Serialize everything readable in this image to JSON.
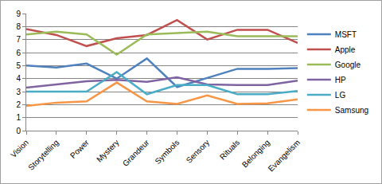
{
  "chart_data": {
    "type": "line",
    "categories": [
      "Vision",
      "Storytelling",
      "Power",
      "Mystery",
      "Grandeur",
      "Symbols",
      "Sensory",
      "Rituals",
      "Belonging",
      "Evangelism"
    ],
    "series": [
      {
        "name": "MSFT",
        "color": "#4f81bd",
        "values": [
          5.0,
          4.85,
          5.15,
          4.0,
          5.55,
          3.35,
          4.05,
          4.75,
          4.75,
          4.8
        ]
      },
      {
        "name": "Apple",
        "color": "#c0504d",
        "values": [
          7.8,
          7.35,
          6.5,
          7.1,
          7.35,
          8.5,
          7.0,
          7.75,
          7.75,
          6.75
        ]
      },
      {
        "name": "Google",
        "color": "#9bbb59",
        "values": [
          7.4,
          7.6,
          7.4,
          5.85,
          7.4,
          7.5,
          7.6,
          7.25,
          7.25,
          7.25
        ]
      },
      {
        "name": "HP",
        "color": "#8064a2",
        "values": [
          3.3,
          3.55,
          3.8,
          3.9,
          3.75,
          4.1,
          3.55,
          3.5,
          3.5,
          3.85
        ]
      },
      {
        "name": "LG",
        "color": "#4bacc6",
        "values": [
          3.0,
          3.0,
          3.0,
          4.5,
          2.8,
          3.5,
          3.5,
          2.8,
          2.8,
          3.05
        ]
      },
      {
        "name": "Samsung",
        "color": "#f79646",
        "values": [
          1.9,
          2.15,
          2.25,
          3.7,
          2.25,
          2.05,
          2.7,
          2.05,
          2.1,
          2.4
        ]
      }
    ],
    "ylim": [
      0,
      9
    ],
    "yticks": [
      0,
      1,
      2,
      3,
      4,
      5,
      6,
      7,
      8,
      9
    ],
    "grid": true,
    "legend": "right"
  }
}
